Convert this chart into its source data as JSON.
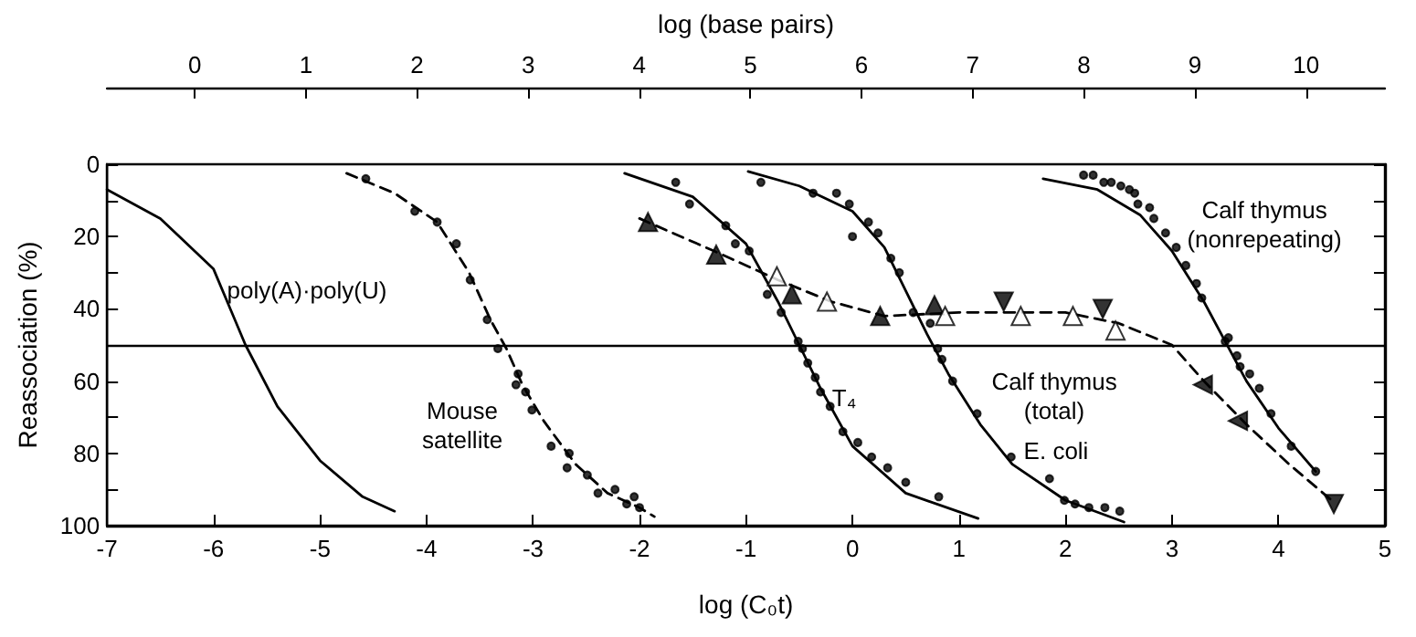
{
  "chart_data": {
    "type": "line",
    "xlabel": "log (C₀t)",
    "ylabel": "Reassociation (%)",
    "x2label": "log (base pairs)",
    "xlim": [
      -7,
      5
    ],
    "xticks": [
      -7,
      -6,
      -5,
      -4,
      -3,
      -2,
      -1,
      0,
      1,
      2,
      3,
      4,
      5
    ],
    "x2lim": [
      -0.79,
      10.71
    ],
    "x2ticks": [
      0,
      1,
      2,
      3,
      4,
      5,
      6,
      7,
      8,
      9,
      10
    ],
    "ylim": [
      100,
      0
    ],
    "yticks": [
      0,
      {
        "value": 10,
        "label": null
      },
      20,
      {
        "value": 30,
        "label": null
      },
      40,
      {
        "value": 50,
        "label": null
      },
      60,
      {
        "value": 70,
        "label": null
      },
      80,
      {
        "value": 90,
        "label": null
      },
      100
    ],
    "ref_lines": [
      {
        "axis": "y",
        "value": 50,
        "color": "#000000",
        "line_style": "solid"
      }
    ],
    "series": [
      {
        "color": "#000000",
        "marker": "none",
        "line_style": "solid",
        "x": [
          -7,
          -6.5,
          -6,
          -5.7,
          -5.4,
          -5,
          -4.6,
          -4.3
        ],
        "values": [
          7,
          15,
          29,
          50,
          67,
          82,
          92,
          96
        ]
      },
      {
        "color": "#000000",
        "marker": "none",
        "line_style": "dashed",
        "x": [
          -4.75,
          -4.3,
          -3.9,
          -3.6,
          -3.4,
          -3.25,
          -3.1,
          -2.9,
          -2.6,
          -2.3,
          -2.0,
          -1.86
        ],
        "values": [
          2.5,
          8,
          16,
          30,
          43,
          51,
          61,
          71,
          83,
          91,
          95,
          97.5
        ]
      },
      {
        "type": "scatter",
        "color": "#000000",
        "marker": "circle",
        "x": [
          -4.57,
          -4.11,
          -3.9,
          -3.72,
          -3.59,
          -3.43,
          -3.33,
          -3.14,
          -3.16,
          -3.07,
          -3.01,
          -2.83,
          -2.66,
          -2.68,
          -2.49,
          -2.39,
          -2.23,
          -2.12,
          -2.05,
          -2.0
        ],
        "values": [
          4,
          13,
          16,
          22,
          32,
          43,
          51,
          58,
          61,
          63,
          68,
          78,
          80,
          84,
          86,
          91,
          90,
          94,
          92,
          95
        ]
      },
      {
        "color": "#000000",
        "marker": "none",
        "line_style": "solid",
        "x": [
          -2.14,
          -1.5,
          -1.0,
          -0.7,
          -0.5,
          -0.3,
          0,
          0.5,
          1.18
        ],
        "values": [
          2.5,
          9,
          22,
          38,
          50,
          62,
          78,
          91,
          98
        ]
      },
      {
        "type": "scatter",
        "color": "#000000",
        "marker": "circle",
        "x": [
          -1.66,
          -1.53,
          -1.19,
          -1.1,
          -0.97,
          -0.8,
          -0.67,
          -0.51,
          -0.47,
          -0.42,
          -0.35,
          -0.3,
          -0.21,
          -0.09,
          0.05,
          0.18,
          0.33,
          0.5,
          0.81
        ],
        "values": [
          5,
          11,
          17,
          22,
          24,
          36,
          41,
          49,
          51,
          55,
          59,
          63,
          67,
          74,
          77,
          81,
          84,
          88,
          92
        ]
      },
      {
        "color": "#000000",
        "marker": "none",
        "line_style": "solid",
        "x": [
          -0.98,
          -0.5,
          0,
          0.3,
          0.5,
          0.7,
          0.9,
          1.2,
          1.5,
          2.0,
          2.55
        ],
        "values": [
          2,
          6,
          13,
          23,
          35,
          47,
          58,
          72,
          83,
          93,
          99
        ]
      },
      {
        "type": "scatter",
        "color": "#000000",
        "marker": "circle",
        "x": [
          -0.86,
          -0.37,
          -0.15,
          -0.03,
          0.0,
          0.15,
          0.24,
          0.36,
          0.44,
          0.57,
          0.73,
          0.8,
          0.84,
          0.94,
          1.17,
          1.49,
          1.85,
          1.99,
          2.09,
          2.22,
          2.37,
          2.51
        ],
        "values": [
          5,
          8,
          8,
          11,
          20,
          16,
          19,
          26,
          30,
          41,
          44,
          51,
          54,
          60,
          69,
          81,
          87,
          93,
          94,
          95,
          95,
          96
        ]
      },
      {
        "color": "#000000",
        "marker": "none",
        "line_style": "solid",
        "x": [
          1.79,
          2.3,
          2.7,
          3.0,
          3.3,
          3.5,
          3.7,
          4.0,
          4.35
        ],
        "values": [
          4,
          7,
          14,
          24,
          38,
          49,
          60,
          73,
          85
        ]
      },
      {
        "type": "scatter",
        "color": "#000000",
        "marker": "circle",
        "x": [
          2.17,
          2.26,
          2.36,
          2.43,
          2.52,
          2.6,
          2.65,
          2.68,
          2.79,
          2.83,
          2.94,
          3.04,
          3.13,
          3.23,
          3.28,
          3.5,
          3.53,
          3.61,
          3.64,
          3.73,
          3.82,
          3.93,
          4.12,
          4.35
        ],
        "values": [
          3,
          3,
          5,
          5,
          6,
          7,
          8,
          11,
          12,
          15,
          19,
          23,
          28,
          33,
          37,
          49,
          48,
          53,
          56,
          58,
          62,
          69,
          78,
          85
        ]
      },
      {
        "color": "#000000",
        "marker": "none",
        "line_style": "dashed",
        "x": [
          -2.0,
          -1.3,
          -0.7,
          -0.2,
          0.3,
          1.0,
          2.0,
          2.5,
          3.0,
          3.3,
          3.7,
          4.1,
          4.5
        ],
        "values": [
          15,
          24,
          32,
          38,
          42,
          41,
          41,
          44,
          50,
          60,
          72,
          83,
          93
        ]
      },
      {
        "type": "scatter",
        "color": "#000000",
        "marker": "triangle",
        "x": [
          -1.92,
          -1.28,
          -0.57,
          0.26,
          0.77
        ],
        "values": [
          16,
          25,
          36,
          42,
          39
        ]
      },
      {
        "type": "scatter",
        "color": "#ffffff",
        "marker": "triangle",
        "x": [
          -0.71,
          -0.24,
          0.87,
          1.58,
          2.07,
          2.47
        ],
        "values": [
          31,
          38,
          42,
          42,
          42,
          46
        ]
      },
      {
        "type": "scatter",
        "color": "#000000",
        "marker": "triangle-down",
        "x": [
          1.42,
          2.35,
          4.52
        ],
        "values": [
          38,
          40,
          94
        ]
      },
      {
        "type": "scatter",
        "color": "#000000",
        "marker": "triangle-left",
        "x": [
          3.29,
          3.62
        ],
        "values": [
          61,
          71
        ]
      }
    ],
    "annotations": [
      "poly(A)·poly(U)",
      "Mouse\nsatellite",
      "T₄",
      "E. coli",
      "Calf thymus\n(total)",
      "Calf thymus\n(nonrepeating)"
    ]
  }
}
